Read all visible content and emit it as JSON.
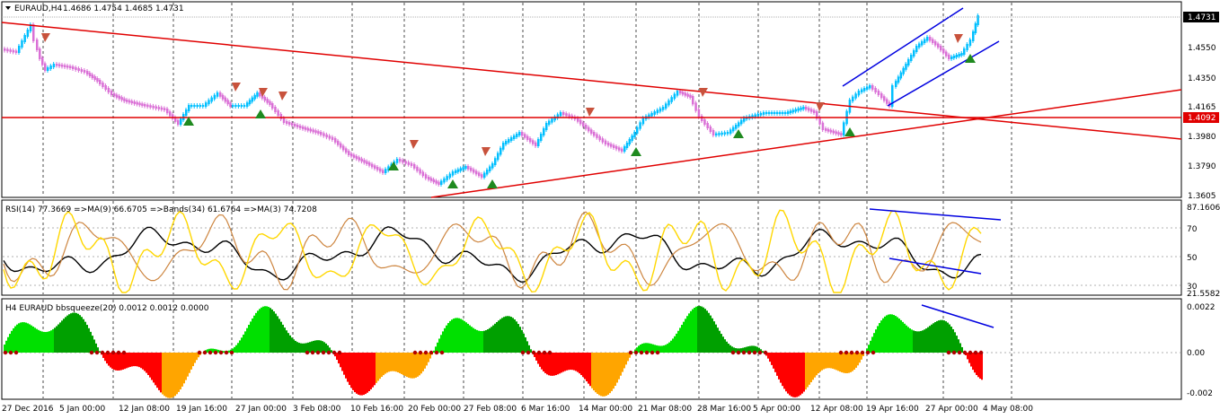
{
  "main": {
    "menu_icon": "triangle-down-icon",
    "header": {
      "symbol": "EURAUD,H4",
      "ohlc": "1.4686 1.4754 1.4685 1.4731"
    },
    "price_tag": "1.4731",
    "level_tag": "1.4092",
    "y_ticks": [
      "1.4550",
      "1.4350",
      "1.4165",
      "1.3980",
      "1.3790",
      "1.3605"
    ]
  },
  "rsi": {
    "header": "RSI(14) 77.3669 =>MA(9) 66.6705 =>Bands(34) 61.6764 =>MA(3) 74.7208",
    "y_ticks": [
      "87.1606",
      "70",
      "50",
      "30",
      "21.5582"
    ]
  },
  "squeeze": {
    "header": "H4 EURAUD bbsqueeze(20) 0.0012 0.0012 0.0000",
    "y_ticks": [
      "0.0022",
      "0.00",
      "-0.002"
    ]
  },
  "time_axis": [
    "27 Dec 2016",
    "5 Jan 00:00",
    "12 Jan 08:00",
    "19 Jan 16:00",
    "27 Jan 00:00",
    "3 Feb 08:00",
    "10 Feb 16:00",
    "20 Feb 00:00",
    "27 Feb 08:00",
    "6 Mar 16:00",
    "14 Mar 00:00",
    "21 Mar 08:00",
    "28 Mar 16:00",
    "5 Apr 00:00",
    "12 Apr 08:00",
    "19 Apr 16:00",
    "27 Apr 00:00",
    "4 May 08:00"
  ],
  "colors": {
    "bull_candle": "#00bfff",
    "bear_candle": "#da70d6",
    "trendline": "#e00000",
    "channel": "#0000e0",
    "grid": "#000000",
    "rsi_fast": "#ffd700",
    "rsi_slow": "#cd853f",
    "rsi_ma": "#000000",
    "squeeze_up_strong": "#00a000",
    "squeeze_up_weak": "#00e000",
    "squeeze_down_strong": "#ff0000",
    "squeeze_down_weak": "#ffa500",
    "squeeze_dots": "#b00000"
  }
}
